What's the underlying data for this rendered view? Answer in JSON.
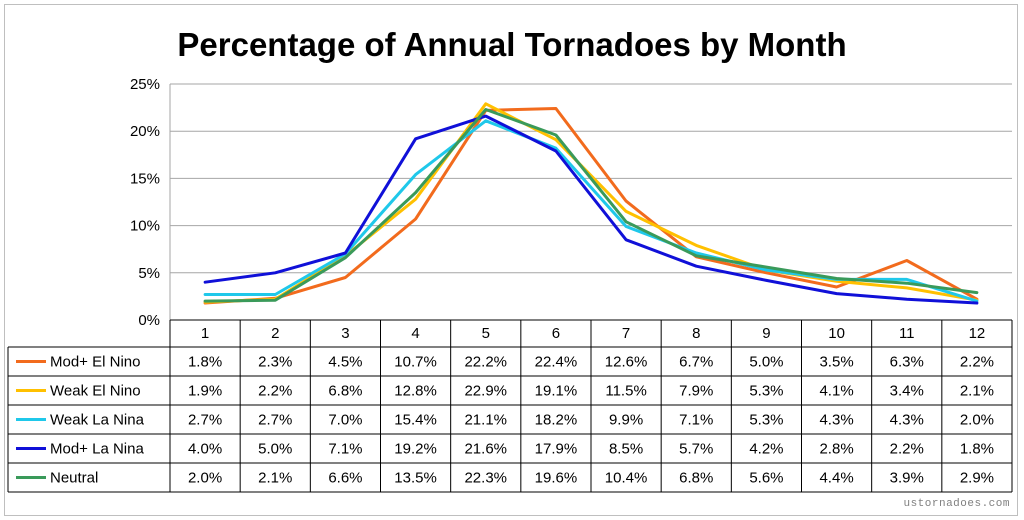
{
  "title": "Percentage of Annual Tornadoes by Month",
  "watermark": "ustornadoes.com",
  "chart_data": {
    "type": "line",
    "title": "Percentage of Annual Tornadoes by Month",
    "xlabel": "",
    "ylabel": "",
    "x": [
      "1",
      "2",
      "3",
      "4",
      "5",
      "6",
      "7",
      "8",
      "9",
      "10",
      "11",
      "12"
    ],
    "ylim": [
      0,
      25
    ],
    "yticks": [
      "0%",
      "5%",
      "10%",
      "15%",
      "20%",
      "25%"
    ],
    "grid": true,
    "legend": "data-table",
    "series": [
      {
        "name": "Mod+ El Nino",
        "color": "#f26b1d",
        "values": [
          1.8,
          2.3,
          4.5,
          10.7,
          22.2,
          22.4,
          12.6,
          6.7,
          5.0,
          3.5,
          6.3,
          2.2
        ],
        "labels": [
          "1.8%",
          "2.3%",
          "4.5%",
          "10.7%",
          "22.2%",
          "22.4%",
          "12.6%",
          "6.7%",
          "5.0%",
          "3.5%",
          "6.3%",
          "2.2%"
        ]
      },
      {
        "name": "Weak El Nino",
        "color": "#ffc000",
        "values": [
          1.9,
          2.2,
          6.8,
          12.8,
          22.9,
          19.1,
          11.5,
          7.9,
          5.3,
          4.1,
          3.4,
          2.1
        ],
        "labels": [
          "1.9%",
          "2.2%",
          "6.8%",
          "12.8%",
          "22.9%",
          "19.1%",
          "11.5%",
          "7.9%",
          "5.3%",
          "4.1%",
          "3.4%",
          "2.1%"
        ]
      },
      {
        "name": "Weak La Nina",
        "color": "#1fc8ea",
        "values": [
          2.7,
          2.7,
          7.0,
          15.4,
          21.1,
          18.2,
          9.9,
          7.1,
          5.3,
          4.3,
          4.3,
          2.0
        ],
        "labels": [
          "2.7%",
          "2.7%",
          "7.0%",
          "15.4%",
          "21.1%",
          "18.2%",
          "9.9%",
          "7.1%",
          "5.3%",
          "4.3%",
          "4.3%",
          "2.0%"
        ]
      },
      {
        "name": "Mod+ La Nina",
        "color": "#1010d8",
        "values": [
          4.0,
          5.0,
          7.1,
          19.2,
          21.6,
          17.9,
          8.5,
          5.7,
          4.2,
          2.8,
          2.2,
          1.8
        ],
        "labels": [
          "4.0%",
          "5.0%",
          "7.1%",
          "19.2%",
          "21.6%",
          "17.9%",
          "8.5%",
          "5.7%",
          "4.2%",
          "2.8%",
          "2.2%",
          "1.8%"
        ]
      },
      {
        "name": "Neutral",
        "color": "#3a9a5a",
        "values": [
          2.0,
          2.1,
          6.6,
          13.5,
          22.3,
          19.6,
          10.4,
          6.8,
          5.6,
          4.4,
          3.9,
          2.9
        ],
        "labels": [
          "2.0%",
          "2.1%",
          "6.6%",
          "13.5%",
          "22.3%",
          "19.6%",
          "10.4%",
          "6.8%",
          "5.6%",
          "4.4%",
          "3.9%",
          "2.9%"
        ]
      }
    ]
  }
}
